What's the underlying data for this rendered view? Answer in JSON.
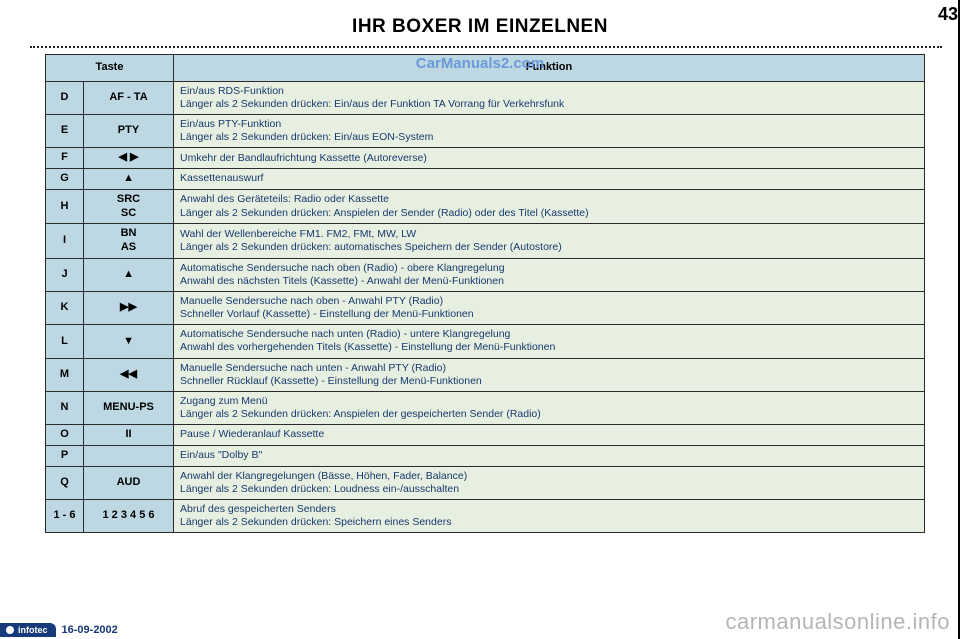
{
  "page_number": "43",
  "title": "IHR BOXER IM EINZELNEN",
  "watermark_top": "CarManuals2.com",
  "watermark_bottom": "carmanualsonline.info",
  "footer": {
    "brand": "infotec",
    "date": "16-09-2002"
  },
  "table": {
    "header": {
      "col_keys": "Taste",
      "col_func": "Funktion"
    },
    "col_widths": [
      "38px",
      "90px",
      "auto"
    ],
    "colors": {
      "header_bg": "#bdd8e2",
      "key_bg": "#bdd8e2",
      "func_bg": "#e7efe1",
      "border": "#2b2b2b",
      "func_text": "#163a6e"
    },
    "rows": [
      {
        "k": "D",
        "b": "AF - TA",
        "f": "Ein/aus RDS-Funktion\nLänger als 2 Sekunden drücken: Ein/aus der Funktion TA Vorrang für Verkehrsfunk"
      },
      {
        "k": "E",
        "b": "PTY",
        "f": "Ein/aus PTY-Funktion\nLänger als 2 Sekunden drücken: Ein/aus EON-System"
      },
      {
        "k": "F",
        "b": "◀ ▶",
        "f": "Umkehr der Bandlaufrichtung Kassette (Autoreverse)"
      },
      {
        "k": "G",
        "b": "▲",
        "f": "Kassettenauswurf"
      },
      {
        "k": "H",
        "b": "SRC\nSC",
        "f": "Anwahl des Geräteteils: Radio oder Kassette\nLänger als 2 Sekunden drücken: Anspielen der Sender (Radio) oder des Titel (Kassette)"
      },
      {
        "k": "I",
        "b": "BN\nAS",
        "f": "Wahl der Wellenbereiche FM1. FM2, FMt, MW, LW\nLänger als 2 Sekunden drücken: automatisches Speichern der Sender (Autostore)"
      },
      {
        "k": "J",
        "b": "▲",
        "f": "Automatische Sendersuche nach oben (Radio) - obere Klangregelung\nAnwahl des nächsten Titels (Kassette) - Anwahl der Menü-Funktionen"
      },
      {
        "k": "K",
        "b": "▶▶",
        "f": "Manuelle Sendersuche nach oben - Anwahl PTY (Radio)\nSchneller Vorlauf (Kassette) - Einstellung der Menü-Funktionen"
      },
      {
        "k": "L",
        "b": "▼",
        "f": "Automatische Sendersuche nach unten (Radio) - untere Klangregelung\nAnwahl des vorhergehenden Titels (Kassette) - Einstellung der Menü-Funktionen"
      },
      {
        "k": "M",
        "b": "◀◀",
        "f": "Manuelle Sendersuche nach unten - Anwahl PTY (Radio)\nSchneller Rücklauf (Kassette) - Einstellung der Menü-Funktionen"
      },
      {
        "k": "N",
        "b": "MENU-PS",
        "f": "Zugang zum Menü\nLänger als 2 Sekunden drücken: Anspielen der gespeicherten Sender (Radio)"
      },
      {
        "k": "O",
        "b": "II",
        "f": "Pause / Wiederanlauf Kassette"
      },
      {
        "k": "P",
        "b": "",
        "f": "Ein/aus \"Dolby B\""
      },
      {
        "k": "Q",
        "b": "AUD",
        "f": "Anwahl der Klangregelungen (Bässe, Höhen, Fader, Balance)\nLänger als 2 Sekunden drücken: Loudness ein-/ausschalten"
      },
      {
        "k": "1 - 6",
        "b": "1 2 3 4 5 6",
        "f": "Abruf des gespeicherten Senders\nLänger als 2 Sekunden drücken: Speichern eines Senders"
      }
    ]
  }
}
